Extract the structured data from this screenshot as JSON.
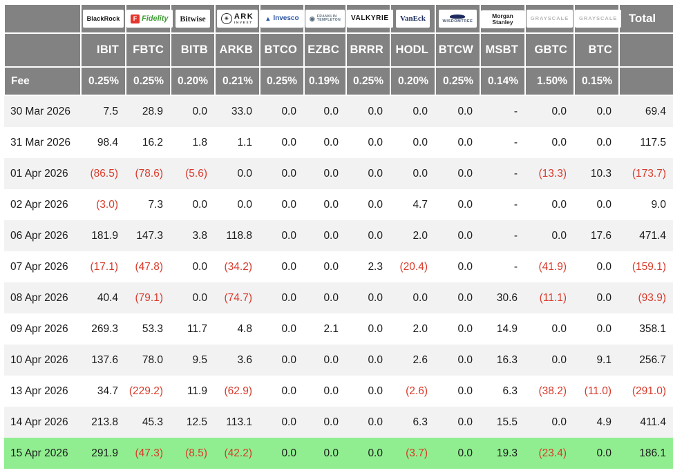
{
  "colors": {
    "header_gray": "#828282",
    "row_stripe": "#f2f2f3",
    "row_white": "#ffffff",
    "highlight_green": "#90ee90",
    "negative_red": "#d93a2a",
    "text_black": "#1b1b1b",
    "header_text": "#ffffff"
  },
  "logos": [
    {
      "cls": "blackrock",
      "name": "BlackRock",
      "text": "BlackRock"
    },
    {
      "cls": "fidelity",
      "name": "Fidelity",
      "icon": "F",
      "text": "Fidelity"
    },
    {
      "cls": "bitwise",
      "name": "Bitwise",
      "text": "Bitwise"
    },
    {
      "cls": "ark",
      "name": "ARK Invest",
      "icon": "✳",
      "text": "ARK",
      "sub": "INVEST"
    },
    {
      "cls": "invesco",
      "name": "Invesco",
      "icon": "▲",
      "text": "Invesco"
    },
    {
      "cls": "franklin",
      "name": "Franklin Templeton",
      "icon": "◉",
      "text": "FRANKLIN",
      "sub": "TEMPLETON"
    },
    {
      "cls": "valkyrie",
      "name": "Valkyrie",
      "text": "VALKYRIE"
    },
    {
      "cls": "vaneck",
      "name": "VanEck",
      "text": "VanEck"
    },
    {
      "cls": "wisdomtree",
      "name": "WisdomTree",
      "icon": "",
      "text": "WISDOMTREE"
    },
    {
      "cls": "morgan",
      "name": "Morgan Stanley",
      "text": "Morgan Stanley"
    },
    {
      "cls": "grayscale",
      "name": "Grayscale",
      "text": "GRAYSCALE"
    },
    {
      "cls": "grayscale",
      "name": "Grayscale",
      "text": "GRAYSCALE"
    }
  ],
  "chart_data": {
    "type": "table",
    "title": "Bitcoin ETF daily flow table",
    "providers": [
      "BlackRock",
      "Fidelity",
      "Bitwise",
      "ARK Invest",
      "Invesco",
      "Franklin Templeton",
      "Valkyrie",
      "VanEck",
      "WisdomTree",
      "Morgan Stanley",
      "Grayscale",
      "Grayscale"
    ],
    "tickers": [
      "IBIT",
      "FBTC",
      "BITB",
      "ARKB",
      "BTCO",
      "EZBC",
      "BRRR",
      "HODL",
      "BTCW",
      "MSBT",
      "GBTC",
      "BTC"
    ],
    "fee_label": "Fee",
    "fees": [
      "0.25%",
      "0.25%",
      "0.20%",
      "0.21%",
      "0.25%",
      "0.19%",
      "0.25%",
      "0.20%",
      "0.25%",
      "0.14%",
      "1.50%",
      "0.15%"
    ],
    "total_label": "Total",
    "rows": [
      {
        "date": "30 Mar 2026",
        "values": [
          "7.5",
          "28.9",
          "0.0",
          "33.0",
          "0.0",
          "0.0",
          "0.0",
          "0.0",
          "0.0",
          "-",
          "0.0",
          "0.0"
        ],
        "total": "69.4"
      },
      {
        "date": "31 Mar 2026",
        "values": [
          "98.4",
          "16.2",
          "1.8",
          "1.1",
          "0.0",
          "0.0",
          "0.0",
          "0.0",
          "0.0",
          "-",
          "0.0",
          "0.0"
        ],
        "total": "117.5"
      },
      {
        "date": "01 Apr 2026",
        "values": [
          "(86.5)",
          "(78.6)",
          "(5.6)",
          "0.0",
          "0.0",
          "0.0",
          "0.0",
          "0.0",
          "0.0",
          "-",
          "(13.3)",
          "10.3"
        ],
        "total": "(173.7)"
      },
      {
        "date": "02 Apr 2026",
        "values": [
          "(3.0)",
          "7.3",
          "0.0",
          "0.0",
          "0.0",
          "0.0",
          "0.0",
          "4.7",
          "0.0",
          "-",
          "0.0",
          "0.0"
        ],
        "total": "9.0"
      },
      {
        "date": "06 Apr 2026",
        "values": [
          "181.9",
          "147.3",
          "3.8",
          "118.8",
          "0.0",
          "0.0",
          "0.0",
          "2.0",
          "0.0",
          "-",
          "0.0",
          "17.6"
        ],
        "total": "471.4"
      },
      {
        "date": "07 Apr 2026",
        "values": [
          "(17.1)",
          "(47.8)",
          "0.0",
          "(34.2)",
          "0.0",
          "0.0",
          "2.3",
          "(20.4)",
          "0.0",
          "-",
          "(41.9)",
          "0.0"
        ],
        "total": "(159.1)"
      },
      {
        "date": "08 Apr 2026",
        "values": [
          "40.4",
          "(79.1)",
          "0.0",
          "(74.7)",
          "0.0",
          "0.0",
          "0.0",
          "0.0",
          "0.0",
          "30.6",
          "(11.1)",
          "0.0"
        ],
        "total": "(93.9)"
      },
      {
        "date": "09 Apr 2026",
        "values": [
          "269.3",
          "53.3",
          "11.7",
          "4.8",
          "0.0",
          "2.1",
          "0.0",
          "2.0",
          "0.0",
          "14.9",
          "0.0",
          "0.0"
        ],
        "total": "358.1"
      },
      {
        "date": "10 Apr 2026",
        "values": [
          "137.6",
          "78.0",
          "9.5",
          "3.6",
          "0.0",
          "0.0",
          "0.0",
          "2.6",
          "0.0",
          "16.3",
          "0.0",
          "9.1"
        ],
        "total": "256.7"
      },
      {
        "date": "13 Apr 2026",
        "values": [
          "34.7",
          "(229.2)",
          "11.9",
          "(62.9)",
          "0.0",
          "0.0",
          "0.0",
          "(2.6)",
          "0.0",
          "6.3",
          "(38.2)",
          "(11.0)"
        ],
        "total": "(291.0)"
      },
      {
        "date": "14 Apr 2026",
        "values": [
          "213.8",
          "45.3",
          "12.5",
          "113.1",
          "0.0",
          "0.0",
          "0.0",
          "6.3",
          "0.0",
          "15.5",
          "0.0",
          "4.9"
        ],
        "total": "411.4"
      },
      {
        "date": "15 Apr 2026",
        "values": [
          "291.9",
          "(47.3)",
          "(8.5)",
          "(42.2)",
          "0.0",
          "0.0",
          "0.0",
          "(3.7)",
          "0.0",
          "19.3",
          "(23.4)",
          "0.0"
        ],
        "total": "186.1",
        "highlight": true
      }
    ]
  }
}
